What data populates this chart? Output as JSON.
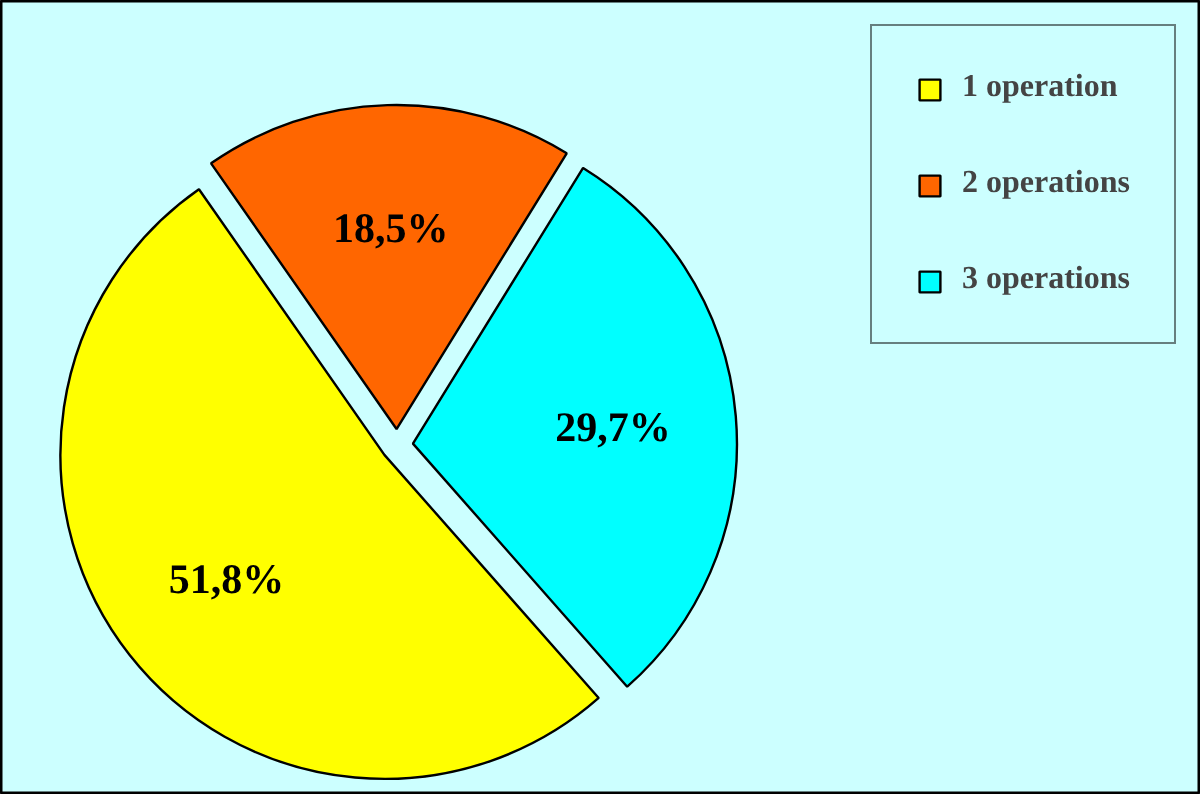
{
  "chart_data": {
    "type": "pie",
    "categories": [
      "1 operation",
      "2 operations",
      "3 operations"
    ],
    "values": [
      51.8,
      18.5,
      29.7
    ],
    "colors": [
      "#ffff00",
      "#ff6600",
      "#00ffff"
    ],
    "value_labels": [
      "51,8%",
      "18,5%",
      "29,7%"
    ],
    "legend": "top right"
  }
}
